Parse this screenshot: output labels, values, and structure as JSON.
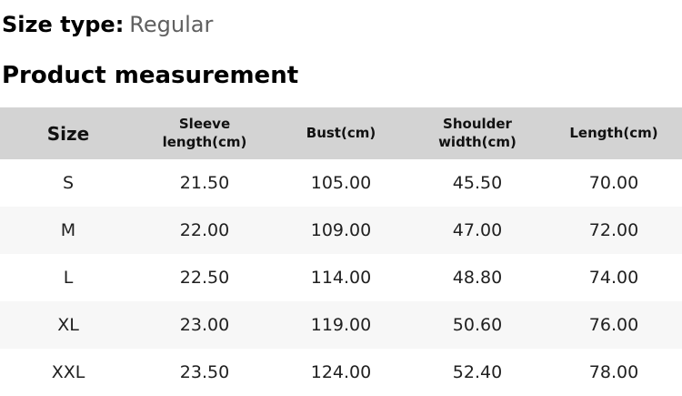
{
  "page": {
    "size_type_label": "Size type:",
    "size_type_value": "Regular",
    "section_title": "Product measurement"
  },
  "colors": {
    "header_bg": "#d3d3d3",
    "zebra_row_bg": "#f7f7f7",
    "muted_text": "#606060"
  },
  "table": {
    "headers": [
      "Size",
      "Sleeve length(cm)",
      "Bust(cm)",
      "Shoulder width(cm)",
      "Length(cm)"
    ],
    "rows": [
      {
        "size": "S",
        "sleeve_length": "21.50",
        "bust": "105.00",
        "shoulder_width": "45.50",
        "length": "70.00"
      },
      {
        "size": "M",
        "sleeve_length": "22.00",
        "bust": "109.00",
        "shoulder_width": "47.00",
        "length": "72.00"
      },
      {
        "size": "L",
        "sleeve_length": "22.50",
        "bust": "114.00",
        "shoulder_width": "48.80",
        "length": "74.00"
      },
      {
        "size": "XL",
        "sleeve_length": "23.00",
        "bust": "119.00",
        "shoulder_width": "50.60",
        "length": "76.00"
      },
      {
        "size": "XXL",
        "sleeve_length": "23.50",
        "bust": "124.00",
        "shoulder_width": "52.40",
        "length": "78.00"
      }
    ]
  }
}
